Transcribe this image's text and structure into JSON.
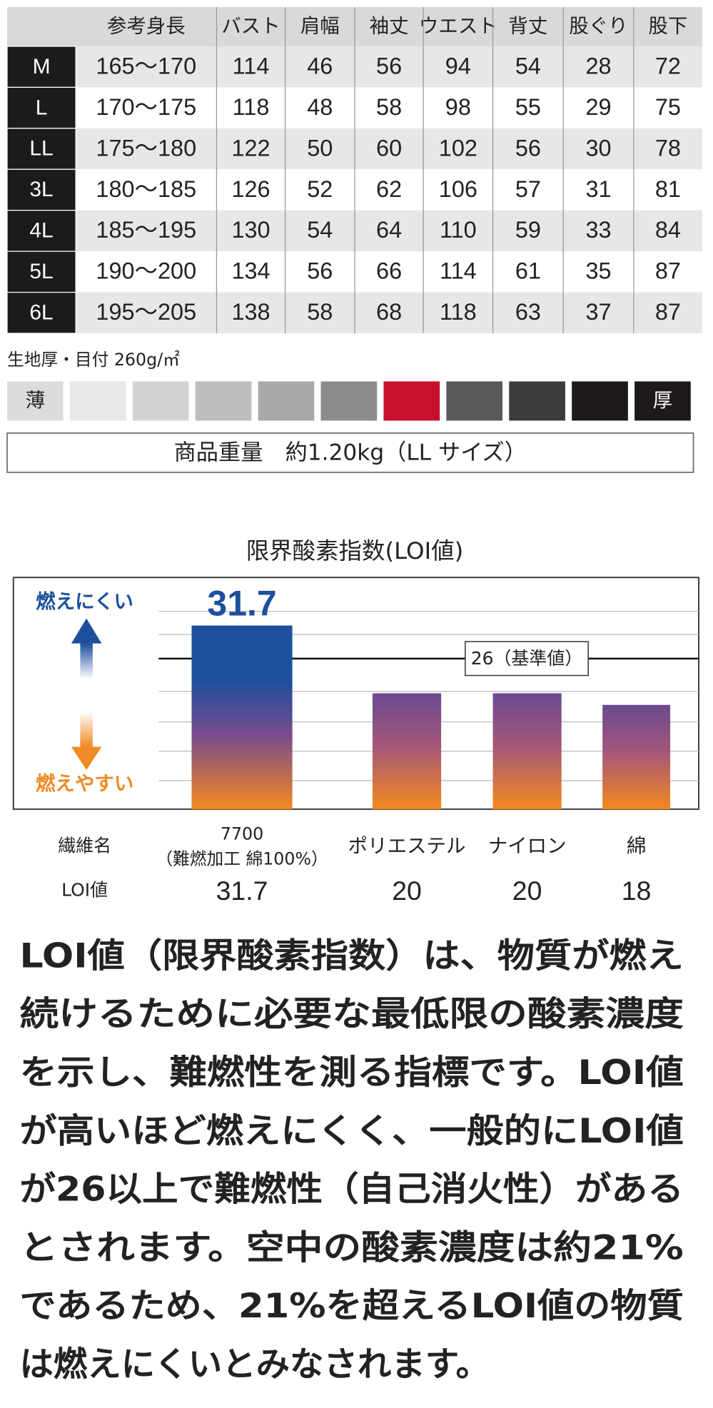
{
  "size_table": {
    "header": [
      "参考身長",
      "バスト",
      "肩幅",
      "袖丈",
      "ウエスト",
      "背丈",
      "股ぐり",
      "股下"
    ],
    "rows": [
      [
        "M",
        "165～170",
        114,
        46,
        56,
        94,
        54,
        28,
        72
      ],
      [
        "L",
        "170～175",
        118,
        48,
        58,
        98,
        55,
        29,
        75
      ],
      [
        "LL",
        "175～180",
        122,
        50,
        60,
        102,
        56,
        30,
        78
      ],
      [
        "3L",
        "180～185",
        126,
        52,
        62,
        106,
        57,
        31,
        81
      ],
      [
        "4L",
        "185～195",
        130,
        54,
        64,
        110,
        59,
        33,
        84
      ],
      [
        "5L",
        "190～200",
        134,
        56,
        66,
        114,
        61,
        35,
        87
      ],
      [
        "6L",
        "195～205",
        138,
        58,
        68,
        118,
        63,
        37,
        87
      ]
    ]
  },
  "fabric": {
    "label": "生地厚・目付 260g/㎡",
    "thin": "薄",
    "thick": "厚"
  },
  "weight": "商品重量　約1.20kg（LL サイズ）",
  "chart_data": {
    "type": "bar",
    "title": "限界酸素指数(LOI値)",
    "categories": [
      [
        "7700",
        "（難燃加工 綿100%）"
      ],
      [
        "ポリエステル"
      ],
      [
        "ナイロン"
      ],
      [
        "綿"
      ]
    ],
    "values": [
      31.7,
      20,
      20,
      18
    ],
    "ylim": [
      0,
      40
    ],
    "reference": {
      "value": 26,
      "label": "26（基準値）"
    },
    "high_label": "燃えにくい",
    "low_label": "燃えやすい",
    "category_heading": "繊維名",
    "value_heading": "LOI値"
  },
  "description": [
    "LOI値（限界酸素指数）は、物質が燃え",
    "続けるために必要な最低限の酸素濃度",
    "を示し、難燃性を測る指標です。LOI値",
    "が高いほど燃えにくく、一般的にLOI値",
    "が26以上で難燃性（自己消火性）がある",
    "とされます。空中の酸素濃度は約21%",
    "であるため、21%を超えるLOI値の物質",
    "は燃えにくいとみなされます。"
  ]
}
